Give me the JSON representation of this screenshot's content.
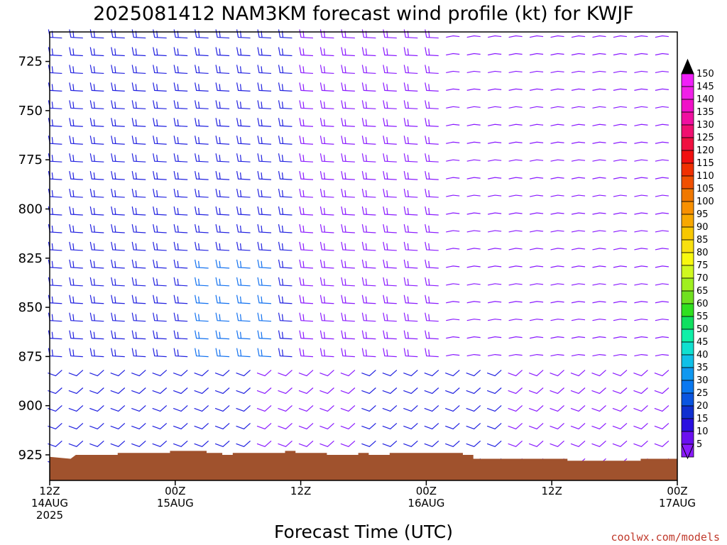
{
  "chart_data": {
    "type": "wind-barb-profile",
    "title": "2025081412 NAM3KM forecast wind profile (kt) for KWJF",
    "xlabel": "Forecast Time (UTC)",
    "ylabel": "",
    "watermark": "coolwx.com/models",
    "x_range_hours": [
      0,
      60
    ],
    "y_range_hPa": [
      710,
      938
    ],
    "y_ticks": [
      725,
      750,
      775,
      800,
      825,
      850,
      875,
      900,
      925
    ],
    "x_ticks": [
      {
        "hour": 0,
        "lines": [
          "12Z",
          "14AUG",
          "2025"
        ]
      },
      {
        "hour": 12,
        "lines": [
          "00Z",
          "15AUG"
        ]
      },
      {
        "hour": 24,
        "lines": [
          "12Z"
        ]
      },
      {
        "hour": 36,
        "lines": [
          "00Z",
          "16AUG"
        ]
      },
      {
        "hour": 48,
        "lines": [
          "12Z"
        ]
      },
      {
        "hour": 60,
        "lines": [
          "00Z",
          "17AUG"
        ]
      }
    ],
    "barb_levels_hPa": [
      712,
      721,
      730,
      739,
      748,
      757,
      766,
      775,
      784,
      793,
      802,
      811,
      820,
      829,
      838,
      847,
      856,
      865,
      874,
      883,
      892,
      901,
      910,
      919,
      928
    ],
    "barb_times_hours": [
      0.5,
      2.5,
      4.5,
      6.5,
      8.5,
      10.5,
      12.5,
      14.5,
      16.5,
      18.5,
      20.5,
      22.5,
      24.5,
      26.5,
      28.5,
      30.5,
      32.5,
      34.5,
      36.5,
      38.5,
      40.5,
      42.5,
      44.5,
      46.5,
      48.5,
      50.5,
      52.5,
      54.5,
      56.5,
      58.5
    ],
    "terrain_surface_pressure_hPa": [
      [
        0,
        926
      ],
      [
        2,
        927
      ],
      [
        2.5,
        925
      ],
      [
        6.5,
        925
      ],
      [
        6.5,
        924
      ],
      [
        11.5,
        924
      ],
      [
        11.5,
        923
      ],
      [
        15,
        923
      ],
      [
        15,
        924
      ],
      [
        16.5,
        924
      ],
      [
        16.5,
        925
      ],
      [
        17.5,
        925
      ],
      [
        17.5,
        924
      ],
      [
        22.5,
        924
      ],
      [
        22.5,
        923
      ],
      [
        23.5,
        923
      ],
      [
        23.5,
        924
      ],
      [
        26.5,
        924
      ],
      [
        26.5,
        925
      ],
      [
        29.5,
        925
      ],
      [
        29.5,
        924
      ],
      [
        30.5,
        924
      ],
      [
        30.5,
        925
      ],
      [
        32.5,
        925
      ],
      [
        32.5,
        924
      ],
      [
        39.5,
        924
      ],
      [
        39.5,
        925
      ],
      [
        40.5,
        925
      ],
      [
        40.5,
        927
      ],
      [
        49.5,
        927
      ],
      [
        49.5,
        928
      ],
      [
        56.5,
        928
      ],
      [
        56.5,
        927
      ],
      [
        60,
        927
      ]
    ],
    "colorbar": {
      "units": "kt",
      "levels": [
        5,
        10,
        15,
        20,
        25,
        30,
        35,
        40,
        45,
        50,
        55,
        60,
        65,
        70,
        75,
        80,
        85,
        90,
        95,
        100,
        105,
        110,
        115,
        120,
        125,
        130,
        135,
        140,
        145,
        150
      ],
      "colors": [
        "#8a1aff",
        "#6a10f0",
        "#2a10e0",
        "#1030d0",
        "#0a55e0",
        "#0a78f0",
        "#1098f0",
        "#10c0e8",
        "#10e0d0",
        "#10f0a8",
        "#10e060",
        "#30e020",
        "#70e020",
        "#a0f020",
        "#d0f820",
        "#f8f810",
        "#f8e010",
        "#f8c800",
        "#f8a800",
        "#f89000",
        "#f07800",
        "#f05000",
        "#f03000",
        "#f01010",
        "#f01040",
        "#f01070",
        "#f010a0",
        "#f010c8",
        "#f020e8",
        "#f020f8"
      ]
    },
    "colors": {
      "terrain": "#a0522d",
      "barb_light": "#8a1aff",
      "barb_medium": "#2020e0",
      "barb_strong": "#1070f0"
    }
  }
}
